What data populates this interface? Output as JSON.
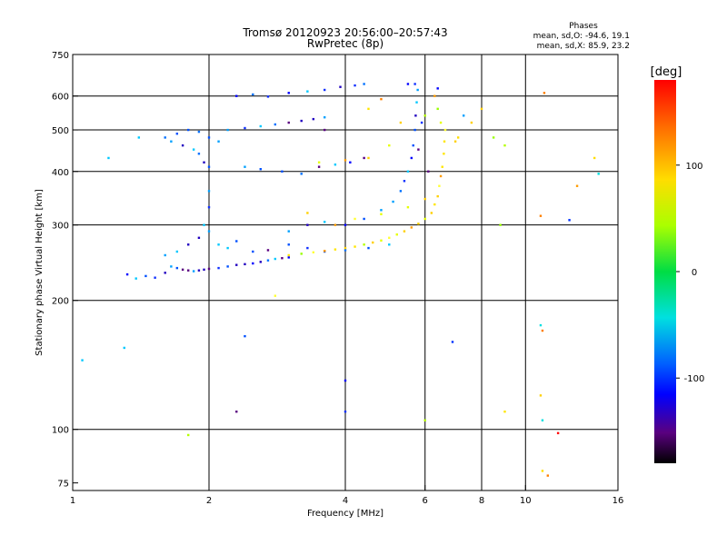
{
  "chart_data": {
    "type": "scatter",
    "title": "Tromsø 20120923 20:56:00–20:57:43",
    "subtitle": "RwPretec (8p)",
    "xlabel": "Frequency [MHz]",
    "ylabel": "Stationary phase Virtual Height [km]",
    "x_scale": "log",
    "y_scale": "log",
    "xlim": [
      1,
      16
    ],
    "ylim": [
      72,
      750
    ],
    "x_ticks": [
      1,
      2,
      4,
      6,
      8,
      10,
      16
    ],
    "y_ticks": [
      75,
      100,
      200,
      300,
      400,
      500,
      600,
      750
    ],
    "x_gridlines": [
      2,
      4,
      6,
      8,
      10
    ],
    "y_gridlines": [
      100,
      200,
      300,
      400,
      500,
      600
    ],
    "grid": true,
    "stats": {
      "heading": "Phases",
      "line1": "mean, sd,O: -94.6, 19.1",
      "line2": "mean, sd,X:  85.9, 23.2"
    },
    "colorbar": {
      "label": "[deg]",
      "min": -180,
      "max": 180,
      "ticks": [
        100,
        0,
        -100
      ],
      "placement": "right"
    },
    "series": [
      {
        "key": "O",
        "phase_mean": -94.6,
        "phase_sd": 19.1,
        "points": [
          [
            1.32,
            230
          ],
          [
            1.38,
            225
          ],
          [
            1.45,
            228
          ],
          [
            1.52,
            226
          ],
          [
            1.6,
            232
          ],
          [
            1.65,
            240
          ],
          [
            1.7,
            238
          ],
          [
            1.75,
            236
          ],
          [
            1.8,
            235
          ],
          [
            1.85,
            234
          ],
          [
            1.9,
            235
          ],
          [
            1.95,
            236
          ],
          [
            2.0,
            237
          ],
          [
            2.1,
            238
          ],
          [
            2.2,
            240
          ],
          [
            2.3,
            242
          ],
          [
            2.4,
            243
          ],
          [
            2.5,
            244
          ],
          [
            2.6,
            246
          ],
          [
            2.7,
            248
          ],
          [
            2.8,
            250
          ],
          [
            2.9,
            251
          ],
          [
            3.0,
            252
          ],
          [
            1.6,
            255
          ],
          [
            1.7,
            260
          ],
          [
            1.8,
            270
          ],
          [
            1.9,
            280
          ],
          [
            2.0,
            290
          ],
          [
            2.1,
            270
          ],
          [
            2.2,
            265
          ],
          [
            2.3,
            275
          ],
          [
            2.5,
            260
          ],
          [
            2.7,
            262
          ],
          [
            3.0,
            270
          ],
          [
            3.3,
            265
          ],
          [
            3.6,
            260
          ],
          [
            4.0,
            262
          ],
          [
            4.5,
            265
          ],
          [
            5.0,
            270
          ],
          [
            3.0,
            290
          ],
          [
            3.3,
            300
          ],
          [
            3.6,
            305
          ],
          [
            4.0,
            300
          ],
          [
            4.4,
            310
          ],
          [
            4.8,
            325
          ],
          [
            5.1,
            340
          ],
          [
            5.3,
            360
          ],
          [
            5.4,
            380
          ],
          [
            5.5,
            400
          ],
          [
            5.6,
            430
          ],
          [
            5.65,
            460
          ],
          [
            5.7,
            500
          ],
          [
            5.72,
            540
          ],
          [
            5.75,
            580
          ],
          [
            5.78,
            620
          ],
          [
            5.7,
            640
          ],
          [
            1.6,
            480
          ],
          [
            1.7,
            490
          ],
          [
            1.8,
            500
          ],
          [
            1.9,
            495
          ],
          [
            2.0,
            480
          ],
          [
            2.1,
            470
          ],
          [
            2.2,
            500
          ],
          [
            2.4,
            505
          ],
          [
            2.6,
            510
          ],
          [
            2.8,
            515
          ],
          [
            3.0,
            520
          ],
          [
            3.2,
            525
          ],
          [
            3.4,
            530
          ],
          [
            3.6,
            535
          ],
          [
            1.65,
            470
          ],
          [
            1.75,
            460
          ],
          [
            1.85,
            450
          ],
          [
            1.9,
            440
          ],
          [
            1.95,
            420
          ],
          [
            2.0,
            410
          ],
          [
            2.4,
            410
          ],
          [
            2.6,
            405
          ],
          [
            2.9,
            400
          ],
          [
            3.2,
            395
          ],
          [
            3.5,
            410
          ],
          [
            3.8,
            415
          ],
          [
            4.1,
            420
          ],
          [
            4.4,
            430
          ],
          [
            2.3,
            600
          ],
          [
            2.5,
            605
          ],
          [
            2.7,
            598
          ],
          [
            3.0,
            610
          ],
          [
            3.3,
            615
          ],
          [
            3.6,
            620
          ],
          [
            3.9,
            630
          ],
          [
            4.2,
            635
          ],
          [
            4.4,
            640
          ],
          [
            2.0,
            360
          ],
          [
            2.0,
            330
          ],
          [
            1.95,
            300
          ],
          [
            1.05,
            145
          ],
          [
            1.2,
            430
          ],
          [
            1.3,
            155
          ],
          [
            1.4,
            480
          ],
          [
            2.3,
            110
          ],
          [
            2.4,
            165
          ],
          [
            4.0,
            130
          ],
          [
            4.0,
            110
          ],
          [
            5.5,
            640
          ],
          [
            6.4,
            625
          ],
          [
            7.3,
            540
          ]
        ]
      },
      {
        "key": "X",
        "phase_mean": 85.9,
        "phase_sd": 23.2,
        "points": [
          [
            3.0,
            255
          ],
          [
            3.2,
            257
          ],
          [
            3.4,
            259
          ],
          [
            3.6,
            261
          ],
          [
            3.8,
            263
          ],
          [
            4.0,
            265
          ],
          [
            4.2,
            267
          ],
          [
            4.4,
            270
          ],
          [
            4.6,
            273
          ],
          [
            4.8,
            276
          ],
          [
            5.0,
            280
          ],
          [
            5.2,
            285
          ],
          [
            5.4,
            290
          ],
          [
            5.6,
            296
          ],
          [
            5.8,
            302
          ],
          [
            6.0,
            310
          ],
          [
            6.2,
            320
          ],
          [
            6.3,
            335
          ],
          [
            6.4,
            350
          ],
          [
            6.45,
            370
          ],
          [
            6.5,
            390
          ],
          [
            6.55,
            410
          ],
          [
            6.6,
            440
          ],
          [
            6.62,
            470
          ],
          [
            6.65,
            500
          ],
          [
            6.5,
            520
          ],
          [
            6.4,
            560
          ],
          [
            6.3,
            600
          ],
          [
            3.8,
            300
          ],
          [
            4.2,
            310
          ],
          [
            4.8,
            318
          ],
          [
            5.5,
            330
          ],
          [
            6.0,
            345
          ],
          [
            3.5,
            420
          ],
          [
            4.0,
            425
          ],
          [
            4.5,
            430
          ],
          [
            5.0,
            460
          ],
          [
            5.3,
            520
          ],
          [
            7.0,
            470
          ],
          [
            7.6,
            520
          ],
          [
            8.0,
            560
          ],
          [
            8.5,
            480
          ],
          [
            9.0,
            460
          ],
          [
            9.0,
            110
          ],
          [
            8.8,
            300
          ],
          [
            10.8,
            120
          ],
          [
            6.0,
            105
          ],
          [
            4.5,
            560
          ],
          [
            6.0,
            540
          ],
          [
            3.3,
            320
          ],
          [
            2.8,
            205
          ],
          [
            1.8,
            97
          ],
          [
            13.0,
            370
          ]
        ]
      },
      {
        "key": "other",
        "points": [
          [
            5.8,
            450
          ],
          [
            5.9,
            520
          ],
          [
            6.1,
            400
          ],
          [
            6.9,
            160
          ],
          [
            10.9,
            105
          ],
          [
            10.8,
            175
          ],
          [
            10.9,
            170
          ],
          [
            10.8,
            315
          ],
          [
            10.9,
            80
          ],
          [
            11.0,
            610
          ],
          [
            11.2,
            78
          ],
          [
            14.5,
            395
          ],
          [
            14.2,
            430
          ],
          [
            11.8,
            98
          ],
          [
            12.5,
            308
          ],
          [
            7.1,
            480
          ],
          [
            3.6,
            500
          ],
          [
            4.8,
            590
          ]
        ]
      }
    ]
  }
}
